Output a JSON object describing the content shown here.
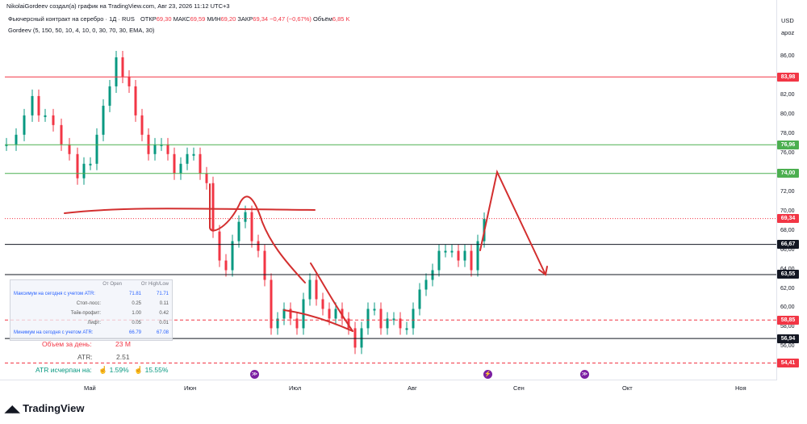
{
  "header": {
    "author_line": "NikolaiGordeev создал(а) график на TradingView.com, Авг 23, 2026 11:12 UTC+3",
    "symbol": "Фьючерсный контракт на серебро · 1Д · RUS",
    "open_label": "ОТКР",
    "open_value": "69,30",
    "high_label": "МАКС",
    "high_value": "69,59",
    "low_label": "МИН",
    "low_value": "69,20",
    "close_label": "ЗАКР",
    "close_value": "69,34",
    "change": "−0,47 (−0,67%)",
    "volume_label": "Объём",
    "volume_value": "6,85 K",
    "indicator": "Gordeev (5, 150, 50, 10, 4, 10, 0, 30, 70, 30, EMA, 30)"
  },
  "axis": {
    "currency": "USD",
    "mode": "apoz",
    "y_ticks": [
      "86,00",
      "84,00",
      "82,00",
      "80,00",
      "78,00",
      "76,00",
      "74,00",
      "72,00",
      "70,00",
      "68,00",
      "66,00",
      "64,00",
      "62,00",
      "60,00",
      "58,00",
      "56,00"
    ],
    "x_labels": [
      "Май",
      "Июн",
      "Июл",
      "Авг",
      "Сен",
      "Окт",
      "Ноя"
    ]
  },
  "price_labels": [
    {
      "value": "83,98",
      "color": "#f23645"
    },
    {
      "value": "76,96",
      "color": "#4caf50"
    },
    {
      "value": "74,00",
      "color": "#4caf50"
    },
    {
      "value": "69,34",
      "color": "#f23645"
    },
    {
      "value": "66,67",
      "color": "#131722"
    },
    {
      "value": "63,55",
      "color": "#131722"
    },
    {
      "value": "58,85",
      "color": "#f23645"
    },
    {
      "value": "56,94",
      "color": "#131722"
    },
    {
      "value": "54,41",
      "color": "#f23645"
    }
  ],
  "info_panel": {
    "col1_header": "От Open",
    "col2_header": "От High/Low",
    "rows": [
      {
        "label": "Максимум на сегодня с учетом ATR:",
        "c1": "71.81",
        "c2": "71.71",
        "style": "blue"
      },
      {
        "label": "Стоп-лосс:",
        "c1": "0.25",
        "c2": "0.11",
        "style": "grey"
      },
      {
        "label": "Тейк-профит:",
        "c1": "1.00",
        "c2": "0.42",
        "style": "grey"
      },
      {
        "label": "Лифт:",
        "c1": "0.05",
        "c2": "0.01",
        "style": "grey"
      },
      {
        "label": "Минимум на сегодня с учетом ATR:",
        "c1": "66.79",
        "c2": "67.08",
        "style": "blue"
      }
    ]
  },
  "stats": {
    "volume_label": "Объем за день:",
    "volume_value": "23 M",
    "atr_label": "ATR:",
    "atr_value": "2.51",
    "atr_spent_label": "ATR исчерпан на:",
    "atr_spent_p1": "1.59%",
    "atr_spent_p2": "15.55%"
  },
  "branding": {
    "logo_text": "TradingView"
  },
  "colors": {
    "up": "#089981",
    "down": "#f23645",
    "drawing": "#d32f2f",
    "support": "#131722",
    "green_line": "#4caf50"
  }
}
